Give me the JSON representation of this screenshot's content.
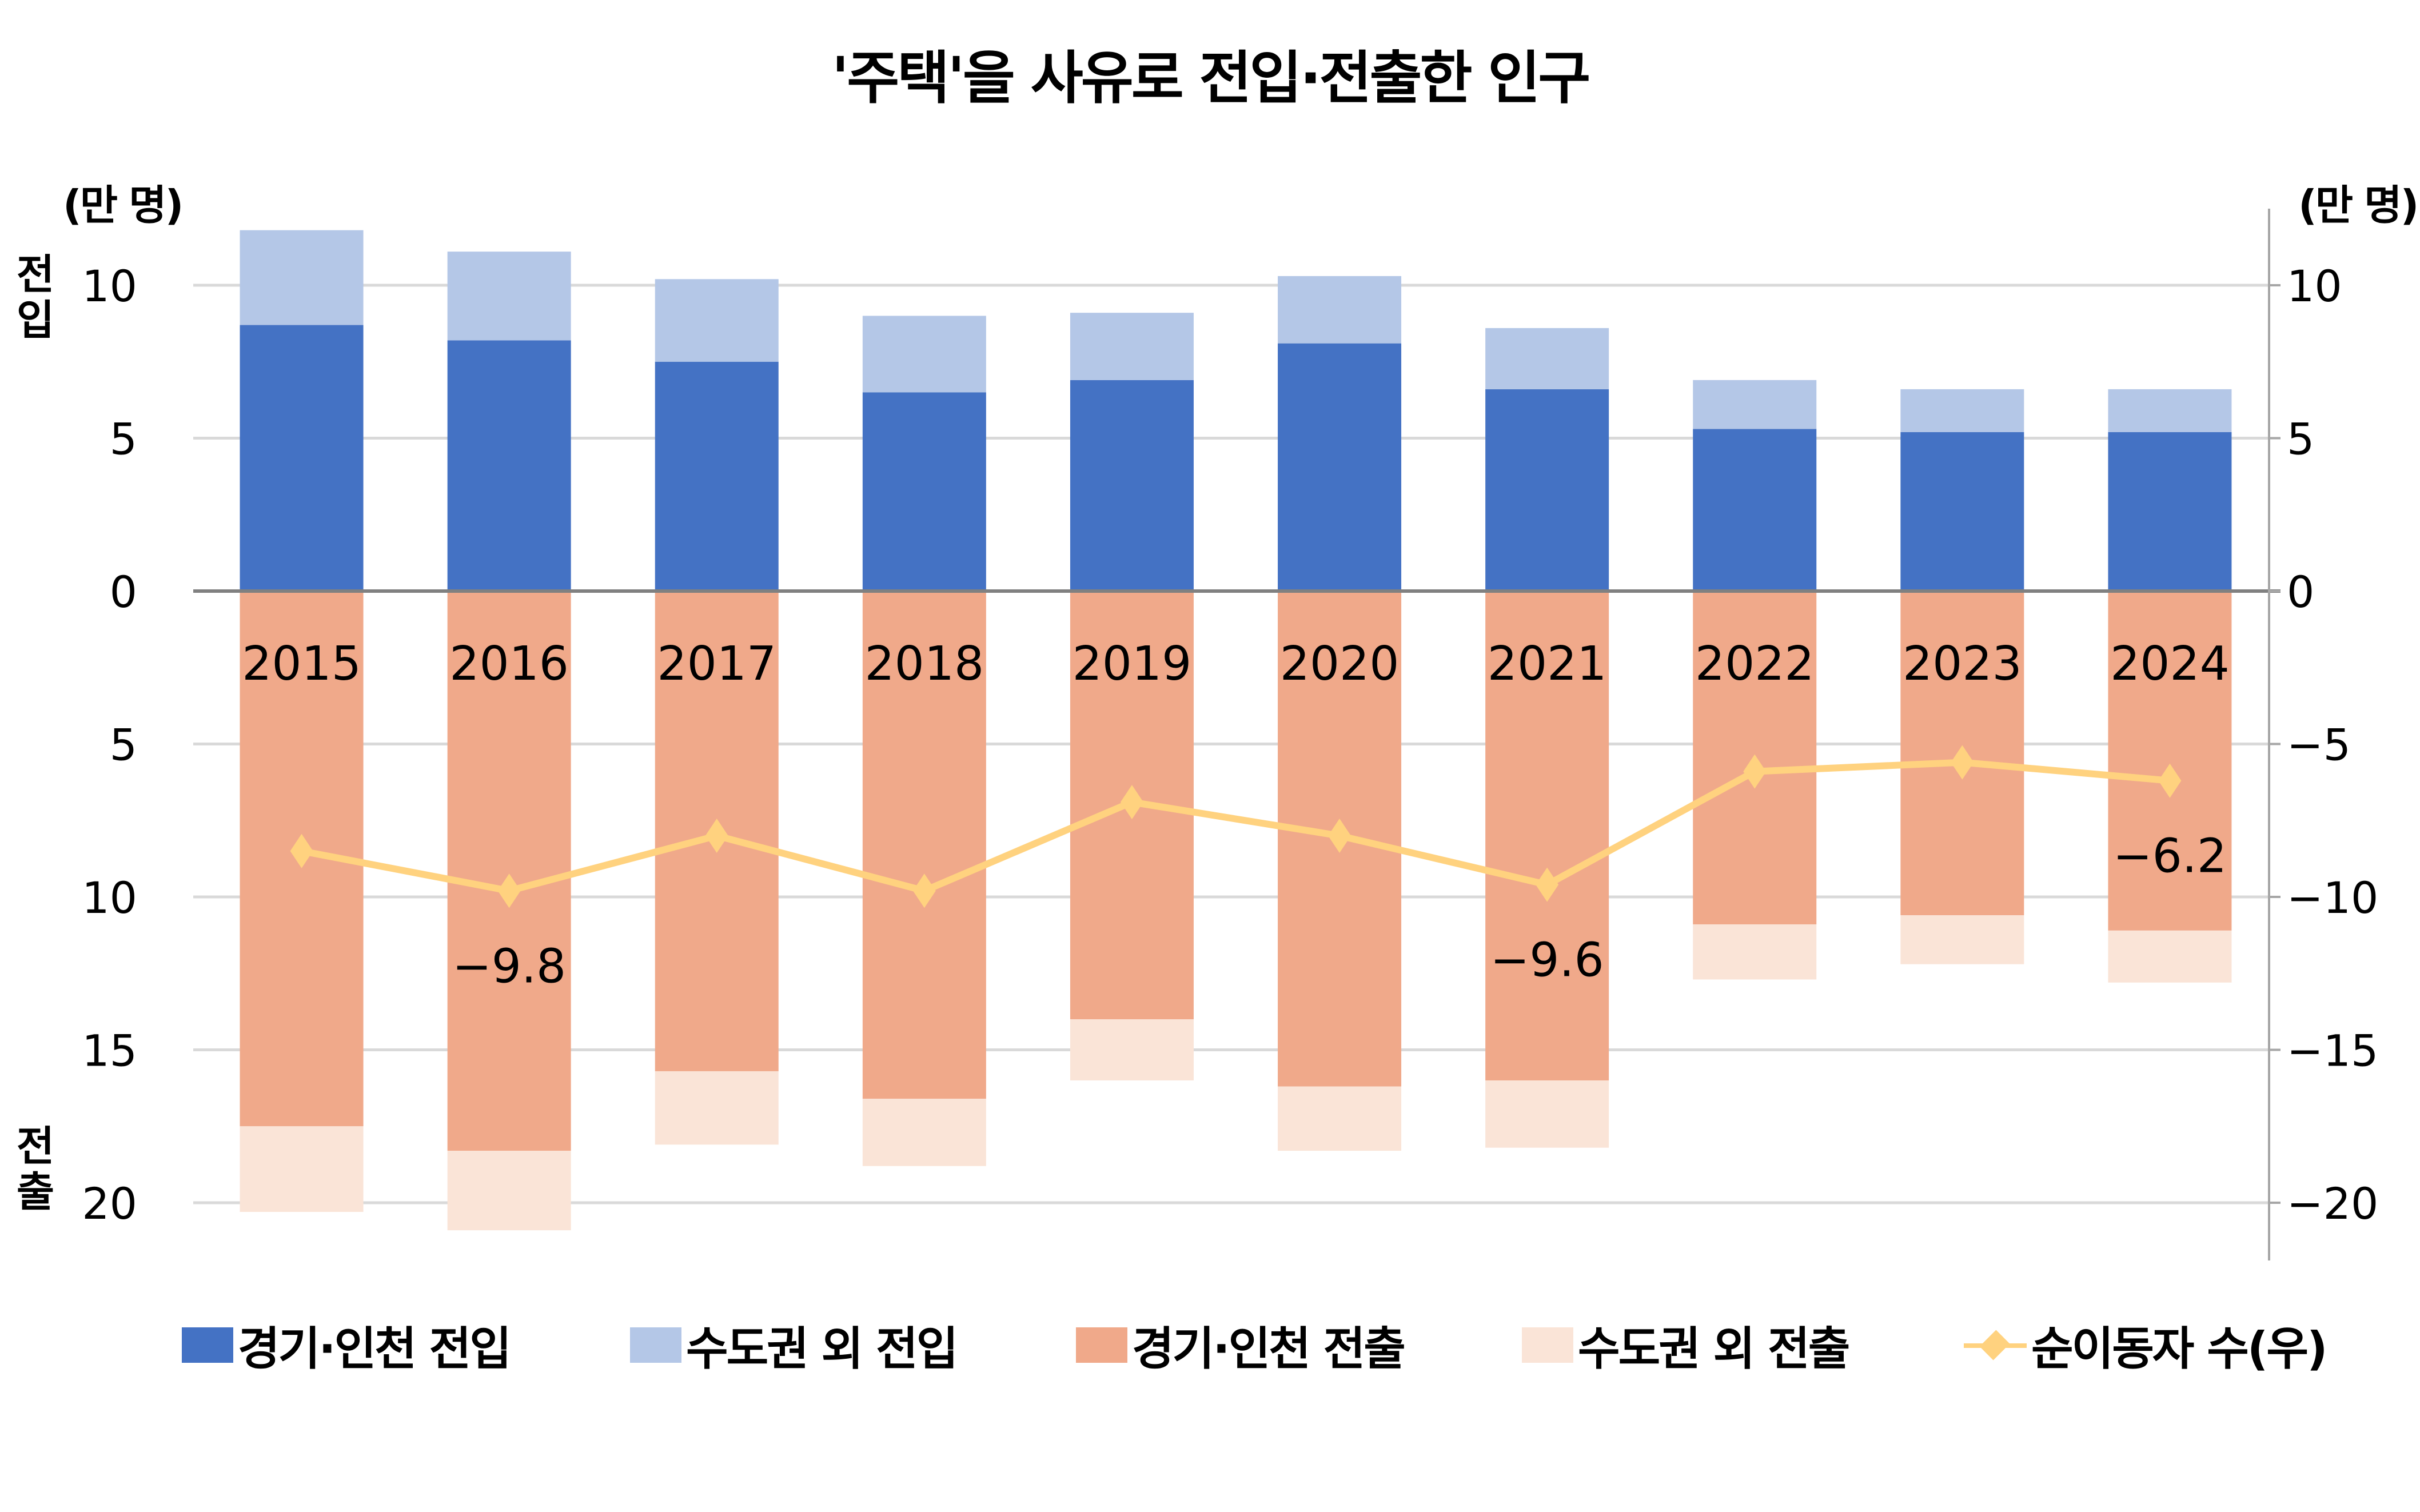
{
  "title": "'주택'을 사유로 전입·전출한 인구",
  "unit_left": "(만 명)",
  "unit_right": "(만 명)",
  "side_labels": {
    "top": [
      "전",
      "입"
    ],
    "bottom": [
      "전",
      "출"
    ]
  },
  "legend": [
    {
      "label": "경기·인천 전입",
      "color": "#4472C4",
      "kind": "bar"
    },
    {
      "label": "수도권 외 전입",
      "color": "#B4C7E7",
      "kind": "bar"
    },
    {
      "label": "경기·인천 전출",
      "color": "#F0A98A",
      "kind": "bar"
    },
    {
      "label": "수도권 외 전출",
      "color": "#FAE4D7",
      "kind": "bar"
    },
    {
      "label": "순이동자 수(우)",
      "color": "#FFD27F",
      "kind": "line"
    }
  ],
  "chart_data": {
    "type": "bar",
    "title": "'주택'을 사유로 전입·전출한 인구",
    "xlabel": "",
    "ylabel": "만 명",
    "categories": [
      "2015",
      "2016",
      "2017",
      "2018",
      "2019",
      "2020",
      "2021",
      "2022",
      "2023",
      "2024"
    ],
    "series": [
      {
        "name": "경기·인천 전입",
        "stack": "in",
        "values": [
          8.7,
          8.2,
          7.5,
          6.5,
          6.9,
          8.1,
          6.6,
          5.3,
          5.2,
          5.2
        ]
      },
      {
        "name": "수도권 외 전입",
        "stack": "in",
        "values": [
          3.1,
          2.9,
          2.7,
          2.5,
          2.2,
          2.2,
          2.0,
          1.6,
          1.4,
          1.4
        ]
      },
      {
        "name": "경기·인천 전출",
        "stack": "out",
        "values": [
          17.5,
          18.3,
          15.7,
          16.6,
          14.0,
          16.2,
          16.0,
          10.9,
          10.6,
          11.1
        ]
      },
      {
        "name": "수도권 외 전출",
        "stack": "out",
        "values": [
          2.8,
          2.6,
          2.4,
          2.2,
          2.0,
          2.1,
          2.2,
          1.8,
          1.6,
          1.7
        ]
      },
      {
        "name": "순이동자 수(우)",
        "type": "line",
        "axis": "right",
        "values": [
          -8.5,
          -9.8,
          -8.0,
          -9.8,
          -6.9,
          -8.0,
          -9.6,
          -5.9,
          -5.6,
          -6.2
        ]
      }
    ],
    "data_labels": [
      {
        "category": "2016",
        "series": "순이동자 수(우)",
        "text": "−9.8"
      },
      {
        "category": "2021",
        "series": "순이동자 수(우)",
        "text": "−9.6"
      },
      {
        "category": "2024",
        "series": "순이동자 수(우)",
        "text": "−6.2"
      }
    ],
    "left_axis": {
      "ticks": [
        10,
        5,
        0,
        5,
        10,
        15,
        20
      ],
      "tick_values": [
        10,
        5,
        0,
        -5,
        -10,
        -15,
        -20
      ],
      "ylim": [
        -21.5,
        12
      ]
    },
    "right_axis": {
      "ticks": [
        "10",
        "5",
        "0",
        "−5",
        "−10",
        "−15",
        "−20"
      ],
      "tick_values": [
        10,
        5,
        0,
        -5,
        -10,
        -15,
        -20
      ],
      "ylim": [
        -21.5,
        12
      ]
    },
    "grid": true,
    "legend_position": "bottom"
  }
}
